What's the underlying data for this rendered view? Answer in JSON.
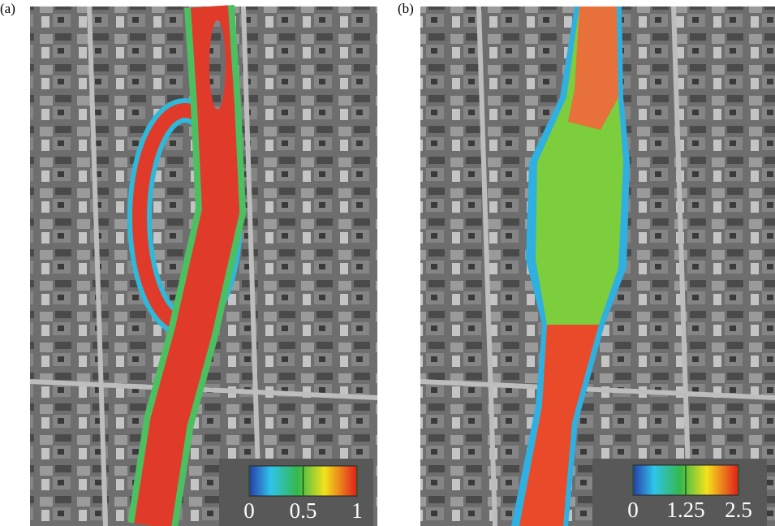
{
  "panels": [
    {
      "label": "(a)",
      "colorbar": {
        "range": [
          0,
          1
        ],
        "ticks": [
          0,
          0.5,
          1
        ]
      }
    },
    {
      "label": "(b)",
      "colorbar": {
        "range": [
          0,
          2.5
        ],
        "ticks": [
          0,
          1.25,
          2.5
        ]
      }
    }
  ]
}
